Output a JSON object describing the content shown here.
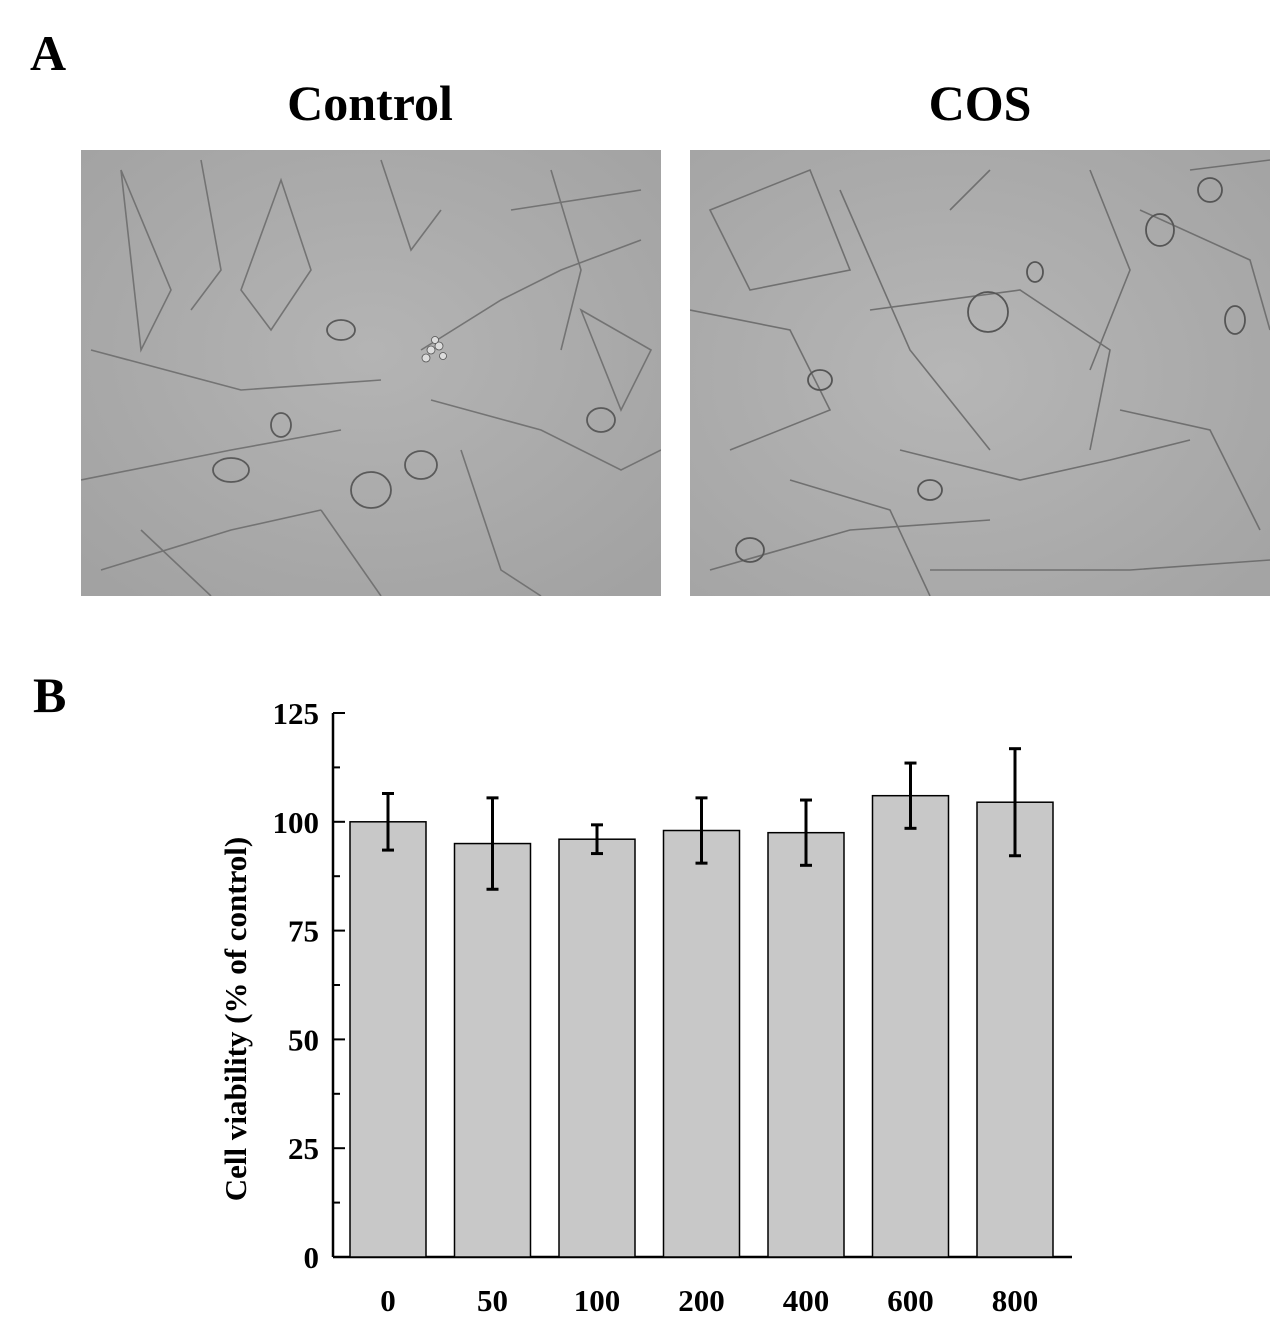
{
  "figure": {
    "panel_a_label": "A",
    "panel_b_label": "B",
    "image_titles": [
      "Control",
      "COS"
    ]
  },
  "chart_data": {
    "type": "bar",
    "categories": [
      "0",
      "50",
      "100",
      "200",
      "400",
      "600",
      "800"
    ],
    "values": [
      100,
      95,
      96,
      98,
      97.5,
      106,
      104.5
    ],
    "error": [
      6.5,
      10.5,
      3.3,
      7.5,
      7.5,
      7.5,
      12.3
    ],
    "ylabel": "Cell viability (% of control)",
    "xlabel": "",
    "ylim": [
      0,
      125
    ],
    "yticks": [
      0,
      25,
      50,
      75,
      100,
      125
    ],
    "bar_color": "#c8c8c8",
    "grid": false
  }
}
